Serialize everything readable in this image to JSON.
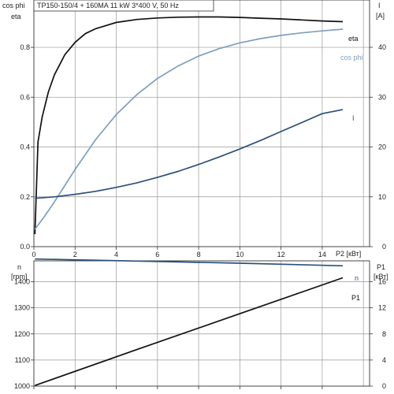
{
  "chart_data": [
    {
      "type": "line",
      "title": "TP150-150/4 + 160MA   11 kW   3*400 V, 50 Hz",
      "x_axis_label": "P2 [кВт]",
      "left_axis_label_1": "cos phi",
      "left_axis_label_2": "eta",
      "right_axis_label": "I",
      "right_axis_unit": "[A]",
      "x_ticks": [
        "0",
        "2",
        "4",
        "6",
        "8",
        "10",
        "12",
        "14"
      ],
      "left_ticks": [
        "0.0",
        "0.2",
        "0.4",
        "0.6",
        "0.8"
      ],
      "right_ticks": [
        "0",
        "10",
        "20",
        "30",
        "40"
      ],
      "xlim": [
        0,
        16.3
      ],
      "ylim_left": [
        0,
        0.99
      ],
      "ylim_right": [
        0,
        49.5
      ],
      "grid": true,
      "series": [
        {
          "name": "eta",
          "axis": "left",
          "color": "#111111",
          "label": "eta",
          "x": [
            0.05,
            0.2,
            0.4,
            0.7,
            1.0,
            1.5,
            2.0,
            2.5,
            3.0,
            4.0,
            5.0,
            6.0,
            7.0,
            8.0,
            9.0,
            10.0,
            11.0,
            12.0,
            13.0,
            14.0,
            15.0
          ],
          "y": [
            0.05,
            0.42,
            0.52,
            0.62,
            0.69,
            0.77,
            0.82,
            0.855,
            0.875,
            0.9,
            0.912,
            0.918,
            0.921,
            0.922,
            0.922,
            0.92,
            0.917,
            0.914,
            0.91,
            0.906,
            0.903
          ]
        },
        {
          "name": "cos phi",
          "axis": "left",
          "color": "#7f9fbf",
          "label": "cos phi",
          "x": [
            0.05,
            0.5,
            1.0,
            2.0,
            3.0,
            4.0,
            5.0,
            6.0,
            7.0,
            8.0,
            9.0,
            10.0,
            11.0,
            12.0,
            13.0,
            14.0,
            15.0
          ],
          "y": [
            0.07,
            0.12,
            0.18,
            0.31,
            0.43,
            0.53,
            0.61,
            0.675,
            0.725,
            0.765,
            0.795,
            0.818,
            0.835,
            0.848,
            0.858,
            0.866,
            0.873
          ]
        },
        {
          "name": "I",
          "axis": "right",
          "color": "#2c4f7a",
          "label": "I",
          "x": [
            0.05,
            1.0,
            2.0,
            3.0,
            4.0,
            5.0,
            6.0,
            7.0,
            8.0,
            9.0,
            10.0,
            11.0,
            12.0,
            13.0,
            14.0,
            15.0
          ],
          "y": [
            9.7,
            10.0,
            10.5,
            11.1,
            11.9,
            12.8,
            13.9,
            15.1,
            16.5,
            18.0,
            19.6,
            21.3,
            23.1,
            24.9,
            26.7,
            27.5
          ]
        }
      ]
    },
    {
      "type": "line",
      "left_axis_label": "n",
      "left_axis_unit": "[rpm]",
      "right_axis_label": "P1",
      "right_axis_unit": "[кВт]",
      "left_ticks": [
        "1000",
        "1100",
        "1200",
        "1300",
        "1400"
      ],
      "right_ticks": [
        "0",
        "4",
        "8",
        "12",
        "16"
      ],
      "xlim": [
        0,
        16.3
      ],
      "ylim_left": [
        1000,
        1480
      ],
      "ylim_right": [
        0,
        19.2
      ],
      "grid": true,
      "series": [
        {
          "name": "n",
          "axis": "left",
          "color": "#2c4f7a",
          "label": "n",
          "x": [
            0.05,
            5,
            10,
            15
          ],
          "y": [
            1487,
            1479,
            1471,
            1461
          ]
        },
        {
          "name": "P1",
          "axis": "right",
          "color": "#111111",
          "label": "P1",
          "x": [
            0.05,
            5,
            10,
            15
          ],
          "y": [
            0.1,
            5.6,
            11.1,
            16.6
          ]
        }
      ]
    }
  ]
}
